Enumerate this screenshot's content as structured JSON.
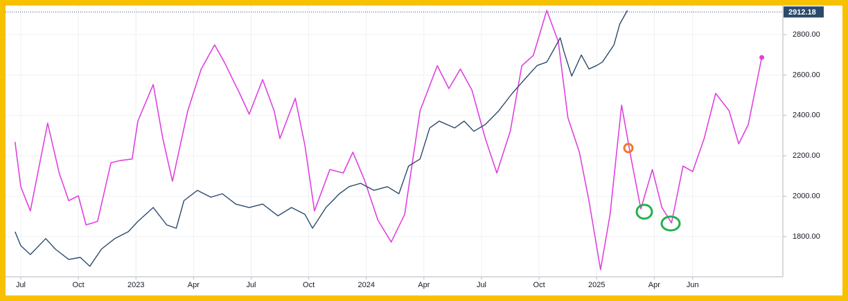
{
  "chart_data": {
    "type": "line",
    "grid": true,
    "xlim": [
      -0.36,
      39.7
    ],
    "ylim": [
      1601,
      2944
    ],
    "yticks": [
      {
        "value": 1800,
        "label": "1800.00"
      },
      {
        "value": 2000,
        "label": "2000.00"
      },
      {
        "value": 2200,
        "label": "2200.00"
      },
      {
        "value": 2400,
        "label": "2400.00"
      },
      {
        "value": 2600,
        "label": "2600.00"
      },
      {
        "value": 2800,
        "label": "2800.00"
      }
    ],
    "xticks": [
      {
        "value": 0,
        "label": "Jul"
      },
      {
        "value": 3,
        "label": "Oct"
      },
      {
        "value": 6,
        "label": "2023"
      },
      {
        "value": 9,
        "label": "Apr"
      },
      {
        "value": 12,
        "label": "Jul"
      },
      {
        "value": 15,
        "label": "Oct"
      },
      {
        "value": 18,
        "label": "2024"
      },
      {
        "value": 21,
        "label": "Apr"
      },
      {
        "value": 24,
        "label": "Jul"
      },
      {
        "value": 27,
        "label": "Oct"
      },
      {
        "value": 30,
        "label": "2025"
      },
      {
        "value": 33,
        "label": "Apr"
      },
      {
        "value": 35,
        "label": "Jun"
      }
    ],
    "last_value": {
      "value": 2912.18,
      "label": "2912.18"
    },
    "series": [
      {
        "color": "#e040e0",
        "x": [
          -0.3,
          0,
          0.5,
          1.4,
          2.0,
          2.5,
          3.0,
          3.4,
          4.0,
          4.7,
          5.2,
          5.8,
          6.1,
          6.9,
          7.4,
          7.9,
          8.7,
          9.4,
          10.1,
          10.6,
          11.4,
          11.9,
          12.6,
          13.2,
          13.5,
          14.3,
          14.8,
          15.3,
          16.1,
          16.8,
          17.3,
          17.9,
          18.6,
          19.3,
          20.0,
          20.8,
          21.7,
          22.3,
          22.9,
          23.5,
          24.2,
          24.8,
          25.5,
          26.1,
          26.7,
          27.4,
          28.0,
          28.5,
          29.1,
          29.6,
          30.2,
          30.7,
          31.3,
          31.8,
          32.3,
          32.9,
          33.4,
          33.9,
          34.5,
          35.0,
          35.6,
          36.2,
          36.9,
          37.4,
          37.9,
          38.6
        ],
        "values": [
          2269,
          2047,
          1927,
          2362,
          2115,
          1978,
          2002,
          1858,
          1875,
          2166,
          2177,
          2184,
          2372,
          2553,
          2286,
          2074,
          2423,
          2629,
          2749,
          2664,
          2509,
          2406,
          2577,
          2423,
          2286,
          2485,
          2252,
          1927,
          2132,
          2115,
          2218,
          2081,
          1882,
          1773,
          1910,
          2423,
          2646,
          2533,
          2630,
          2526,
          2286,
          2115,
          2321,
          2646,
          2697,
          2920,
          2766,
          2389,
          2218,
          1978,
          1636,
          1910,
          2451,
          2184,
          1937,
          2132,
          1944,
          1868,
          2149,
          2122,
          2286,
          2509,
          2423,
          2259,
          2355,
          2687
        ]
      },
      {
        "color": "#2b4a6b",
        "x": [
          -0.3,
          0,
          0.5,
          1.3,
          1.8,
          2.5,
          3.1,
          3.6,
          4.2,
          4.9,
          5.6,
          6.1,
          6.9,
          7.6,
          8.1,
          8.5,
          9.2,
          9.9,
          10.5,
          11.2,
          11.9,
          12.6,
          13.4,
          14.1,
          14.8,
          15.2,
          15.9,
          16.6,
          17.1,
          17.7,
          18.4,
          19.1,
          19.7,
          20.2,
          20.8,
          21.3,
          21.8,
          22.6,
          23.1,
          23.6,
          24.2,
          24.9,
          25.6,
          26.4,
          26.9,
          27.4,
          27.8,
          28.1,
          28.3,
          28.7,
          29.2,
          29.6,
          30.0,
          30.3,
          30.9,
          31.2,
          31.6
        ],
        "values": [
          1824,
          1755,
          1711,
          1790,
          1738,
          1687,
          1697,
          1653,
          1738,
          1790,
          1824,
          1875,
          1944,
          1858,
          1841,
          1978,
          2029,
          1995,
          2012,
          1961,
          1944,
          1961,
          1903,
          1944,
          1910,
          1841,
          1944,
          2012,
          2047,
          2064,
          2029,
          2047,
          2012,
          2149,
          2184,
          2338,
          2372,
          2338,
          2372,
          2321,
          2355,
          2423,
          2509,
          2595,
          2647,
          2664,
          2732,
          2784,
          2715,
          2595,
          2699,
          2630,
          2647,
          2664,
          2749,
          2852,
          2920
        ]
      }
    ]
  }
}
